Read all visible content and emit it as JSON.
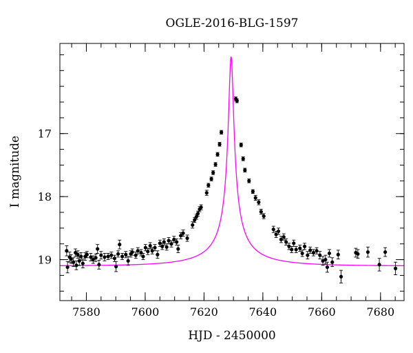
{
  "chart_data": {
    "type": "scatter",
    "title": "OGLE-2016-BLG-1597",
    "xlabel": "HJD - 2450000",
    "ylabel": "I magnitude",
    "xlim": [
      7571,
      7688
    ],
    "ylim": [
      19.65,
      15.57
    ],
    "y_inverted": true,
    "x_ticks": [
      7580,
      7600,
      7620,
      7640,
      7660,
      7680
    ],
    "x_tick_labels": [
      "7580",
      "7600",
      "7620",
      "7640",
      "7660",
      "7680"
    ],
    "y_ticks": [
      17,
      18,
      19
    ],
    "y_tick_labels": [
      "17",
      "18",
      "19"
    ],
    "x_minor_step": 5,
    "y_minor_step": 0.25,
    "grid": false,
    "colors": {
      "data": "#000000",
      "model": "#ff00ff"
    },
    "model": {
      "t0": 7629.2,
      "tE": 23,
      "u0": 0.04,
      "baseline": 19.1,
      "peak_mag": 15.78
    },
    "series": [
      {
        "marker": "filled-circle-with-errorbar",
        "points": [
          {
            "x": 7573.3,
            "y": 18.86,
            "e": 0.08
          },
          {
            "x": 7573.6,
            "y": 19.12,
            "e": 0.09
          },
          {
            "x": 7574.3,
            "y": 18.96,
            "e": 0.08
          },
          {
            "x": 7574.8,
            "y": 18.99,
            "e": 0.07
          },
          {
            "x": 7575.6,
            "y": 19.04,
            "e": 0.07
          },
          {
            "x": 7576.3,
            "y": 18.89,
            "e": 0.06
          },
          {
            "x": 7576.6,
            "y": 19.09,
            "e": 0.07
          },
          {
            "x": 7577.1,
            "y": 18.92,
            "e": 0.06
          },
          {
            "x": 7577.6,
            "y": 19.02,
            "e": 0.07
          },
          {
            "x": 7578.2,
            "y": 18.95,
            "e": 0.06
          },
          {
            "x": 7578.8,
            "y": 19.06,
            "e": 0.07
          },
          {
            "x": 7579.6,
            "y": 18.95,
            "e": 0.06
          },
          {
            "x": 7580.2,
            "y": 18.92,
            "e": 0.05
          },
          {
            "x": 7581.5,
            "y": 18.96,
            "e": 0.06
          },
          {
            "x": 7582.3,
            "y": 19.0,
            "e": 0.06
          },
          {
            "x": 7583.2,
            "y": 18.97,
            "e": 0.06
          },
          {
            "x": 7583.8,
            "y": 18.83,
            "e": 0.07
          },
          {
            "x": 7584.3,
            "y": 19.08,
            "e": 0.07
          },
          {
            "x": 7585.0,
            "y": 18.93,
            "e": 0.06
          },
          {
            "x": 7586.2,
            "y": 18.96,
            "e": 0.06
          },
          {
            "x": 7587.4,
            "y": 18.95,
            "e": 0.05
          },
          {
            "x": 7588.5,
            "y": 18.93,
            "e": 0.05
          },
          {
            "x": 7589.6,
            "y": 18.98,
            "e": 0.05
          },
          {
            "x": 7590.1,
            "y": 19.11,
            "e": 0.08
          },
          {
            "x": 7590.8,
            "y": 18.91,
            "e": 0.05
          },
          {
            "x": 7591.3,
            "y": 18.76,
            "e": 0.07
          },
          {
            "x": 7592.2,
            "y": 18.95,
            "e": 0.05
          },
          {
            "x": 7593.4,
            "y": 18.92,
            "e": 0.05
          },
          {
            "x": 7594.2,
            "y": 19.02,
            "e": 0.07
          },
          {
            "x": 7595.1,
            "y": 18.91,
            "e": 0.05
          },
          {
            "x": 7595.6,
            "y": 18.88,
            "e": 0.05
          },
          {
            "x": 7596.8,
            "y": 18.93,
            "e": 0.05
          },
          {
            "x": 7597.5,
            "y": 18.86,
            "e": 0.05
          },
          {
            "x": 7598.6,
            "y": 18.89,
            "e": 0.05
          },
          {
            "x": 7599.3,
            "y": 18.95,
            "e": 0.05
          },
          {
            "x": 7600.1,
            "y": 18.81,
            "e": 0.05
          },
          {
            "x": 7600.9,
            "y": 18.87,
            "e": 0.05
          },
          {
            "x": 7601.7,
            "y": 18.78,
            "e": 0.05
          },
          {
            "x": 7602.4,
            "y": 18.86,
            "e": 0.05
          },
          {
            "x": 7603.3,
            "y": 18.81,
            "e": 0.05
          },
          {
            "x": 7604.2,
            "y": 18.92,
            "e": 0.06
          },
          {
            "x": 7605.0,
            "y": 18.74,
            "e": 0.05
          },
          {
            "x": 7605.8,
            "y": 18.79,
            "e": 0.05
          },
          {
            "x": 7606.4,
            "y": 18.72,
            "e": 0.05
          },
          {
            "x": 7607.3,
            "y": 18.8,
            "e": 0.05
          },
          {
            "x": 7608.0,
            "y": 18.7,
            "e": 0.05
          },
          {
            "x": 7608.9,
            "y": 18.75,
            "e": 0.05
          },
          {
            "x": 7609.8,
            "y": 18.68,
            "e": 0.05
          },
          {
            "x": 7610.7,
            "y": 18.72,
            "e": 0.05
          },
          {
            "x": 7611.2,
            "y": 18.83,
            "e": 0.06
          },
          {
            "x": 7612.1,
            "y": 18.62,
            "e": 0.05
          },
          {
            "x": 7612.9,
            "y": 18.58,
            "e": 0.05
          },
          {
            "x": 7614.3,
            "y": 18.66,
            "e": 0.05
          },
          {
            "x": 7616.1,
            "y": 18.45,
            "e": 0.05
          },
          {
            "x": 7616.8,
            "y": 18.37,
            "e": 0.04
          },
          {
            "x": 7617.4,
            "y": 18.32,
            "e": 0.04
          },
          {
            "x": 7617.9,
            "y": 18.27,
            "e": 0.04
          },
          {
            "x": 7618.5,
            "y": 18.2,
            "e": 0.04
          },
          {
            "x": 7619.0,
            "y": 18.17,
            "e": 0.04
          },
          {
            "x": 7620.9,
            "y": 17.94,
            "e": 0.04
          },
          {
            "x": 7621.5,
            "y": 17.82,
            "e": 0.03
          },
          {
            "x": 7622.5,
            "y": 17.72,
            "e": 0.03
          },
          {
            "x": 7623.1,
            "y": 17.62,
            "e": 0.03
          },
          {
            "x": 7623.9,
            "y": 17.49,
            "e": 0.03
          },
          {
            "x": 7624.6,
            "y": 17.33,
            "e": 0.03
          },
          {
            "x": 7625.3,
            "y": 17.17,
            "e": 0.03
          },
          {
            "x": 7625.9,
            "y": 16.98,
            "e": 0.03
          },
          {
            "x": 7630.8,
            "y": 16.45,
            "e": 0.03
          },
          {
            "x": 7631.2,
            "y": 16.48,
            "e": 0.03
          },
          {
            "x": 7632.6,
            "y": 17.18,
            "e": 0.03
          },
          {
            "x": 7633.3,
            "y": 17.4,
            "e": 0.03
          },
          {
            "x": 7633.9,
            "y": 17.58,
            "e": 0.03
          },
          {
            "x": 7635.3,
            "y": 17.75,
            "e": 0.03
          },
          {
            "x": 7636.6,
            "y": 17.92,
            "e": 0.03
          },
          {
            "x": 7637.5,
            "y": 18.02,
            "e": 0.04
          },
          {
            "x": 7638.6,
            "y": 18.09,
            "e": 0.04
          },
          {
            "x": 7639.4,
            "y": 18.24,
            "e": 0.04
          },
          {
            "x": 7640.3,
            "y": 18.31,
            "e": 0.04
          },
          {
            "x": 7643.6,
            "y": 18.52,
            "e": 0.05
          },
          {
            "x": 7644.5,
            "y": 18.6,
            "e": 0.05
          },
          {
            "x": 7645.3,
            "y": 18.55,
            "e": 0.05
          },
          {
            "x": 7646.2,
            "y": 18.68,
            "e": 0.05
          },
          {
            "x": 7647.1,
            "y": 18.64,
            "e": 0.05
          },
          {
            "x": 7647.9,
            "y": 18.72,
            "e": 0.05
          },
          {
            "x": 7648.9,
            "y": 18.79,
            "e": 0.05
          },
          {
            "x": 7649.8,
            "y": 18.84,
            "e": 0.05
          },
          {
            "x": 7650.5,
            "y": 18.74,
            "e": 0.05
          },
          {
            "x": 7651.3,
            "y": 18.84,
            "e": 0.05
          },
          {
            "x": 7652.6,
            "y": 18.82,
            "e": 0.05
          },
          {
            "x": 7653.4,
            "y": 18.9,
            "e": 0.05
          },
          {
            "x": 7654.2,
            "y": 18.79,
            "e": 0.05
          },
          {
            "x": 7655.2,
            "y": 18.93,
            "e": 0.06
          },
          {
            "x": 7656.1,
            "y": 18.85,
            "e": 0.05
          },
          {
            "x": 7657.2,
            "y": 18.89,
            "e": 0.05
          },
          {
            "x": 7658.3,
            "y": 18.86,
            "e": 0.05
          },
          {
            "x": 7659.4,
            "y": 18.93,
            "e": 0.06
          },
          {
            "x": 7660.4,
            "y": 19.02,
            "e": 0.07
          },
          {
            "x": 7661.3,
            "y": 19.0,
            "e": 0.07
          },
          {
            "x": 7661.9,
            "y": 19.12,
            "e": 0.08
          },
          {
            "x": 7662.6,
            "y": 18.9,
            "e": 0.06
          },
          {
            "x": 7663.6,
            "y": 19.04,
            "e": 0.07
          },
          {
            "x": 7665.6,
            "y": 18.92,
            "e": 0.07
          },
          {
            "x": 7666.6,
            "y": 19.27,
            "e": 0.1
          },
          {
            "x": 7671.6,
            "y": 18.89,
            "e": 0.07
          },
          {
            "x": 7672.3,
            "y": 18.91,
            "e": 0.07
          },
          {
            "x": 7675.7,
            "y": 18.88,
            "e": 0.08
          },
          {
            "x": 7679.6,
            "y": 19.08,
            "e": 0.1
          },
          {
            "x": 7681.6,
            "y": 18.88,
            "e": 0.07
          },
          {
            "x": 7685.1,
            "y": 19.14,
            "e": 0.1
          }
        ]
      }
    ]
  }
}
